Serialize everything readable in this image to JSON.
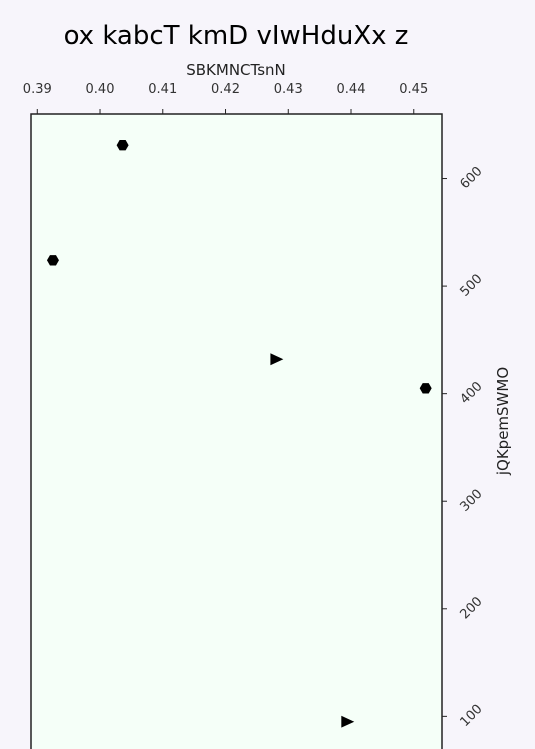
{
  "chart_data": {
    "type": "scatter",
    "title": "ox kabcT kmD vIwHduXx z",
    "xlabel": "SBKMNCTsnN",
    "ylabel": "jQKpemSWMO",
    "x_axis_position": "top",
    "y_axis_position": "right",
    "xlim": [
      0.389,
      0.4545
    ],
    "ylim": [
      65,
      660
    ],
    "x_ticks": [
      "0.39",
      "0.40",
      "0.41",
      "0.42",
      "0.43",
      "0.44",
      "0.45"
    ],
    "y_ticks": [
      "100",
      "200",
      "300",
      "400",
      "500",
      "600"
    ],
    "grid": false,
    "background_color": "#f5fff8",
    "series": [
      {
        "marker": "hexagon",
        "color": "#000000",
        "points": [
          {
            "x": 0.4036,
            "y": 631
          },
          {
            "x": 0.3925,
            "y": 524
          },
          {
            "x": 0.4519,
            "y": 405
          }
        ]
      },
      {
        "marker": "triangle-right",
        "color": "#000000",
        "points": [
          {
            "x": 0.4281,
            "y": 432
          },
          {
            "x": 0.4394,
            "y": 95
          }
        ]
      }
    ]
  }
}
